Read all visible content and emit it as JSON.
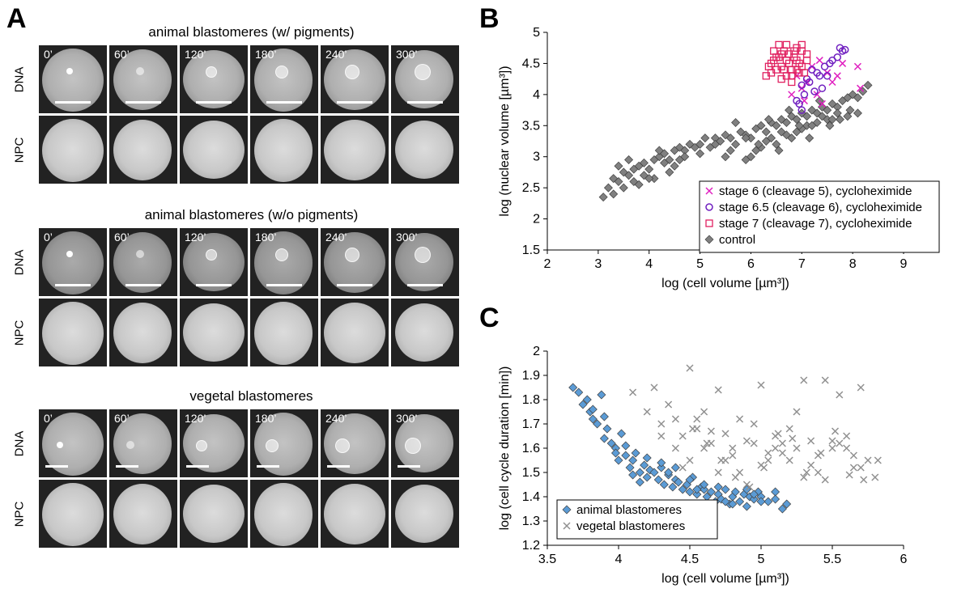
{
  "panel_a": {
    "letter": "A",
    "groups": [
      {
        "title": "animal blastomeres (w/  pigments)",
        "times": [
          "0’",
          "60’",
          "120’",
          "180’",
          "240’",
          "300’"
        ],
        "rows": [
          "DNA",
          "NPC"
        ]
      },
      {
        "title": "animal blastomeres (w/o pigments)",
        "times": [
          "0’",
          "60’",
          "120’",
          "180’",
          "240’",
          "300’"
        ],
        "rows": [
          "DNA",
          "NPC"
        ]
      },
      {
        "title": "vegetal blastomeres",
        "times": [
          "0’",
          "60’",
          "120’",
          "180’",
          "240’",
          "300’"
        ],
        "rows": [
          "DNA",
          "NPC"
        ]
      }
    ]
  },
  "chart_data": [
    {
      "panel": "B",
      "type": "scatter",
      "xlabel": "log (cell volume [µm³])",
      "ylabel": "log (nuclear volume [µm³])",
      "xlim": [
        2,
        9
      ],
      "ylim": [
        1.5,
        5
      ],
      "xticks": [
        "2",
        "3",
        "4",
        "5",
        "6",
        "7",
        "8",
        "9"
      ],
      "yticks": [
        "1.5",
        "2",
        "2.5",
        "3",
        "3.5",
        "4",
        "4.5",
        "5"
      ],
      "legend_position": "bottom-right",
      "series": [
        {
          "name": "stage 6 (cleavage 5), cycloheximide",
          "marker": "x",
          "color": "#e020c0",
          "x": [
            6.9,
            7.0,
            7.1,
            7.2,
            7.3,
            7.4,
            7.5,
            7.6,
            7.7,
            7.8,
            8.1,
            8.15,
            6.8,
            7.05,
            7.35
          ],
          "y": [
            4.3,
            4.1,
            4.2,
            4.45,
            4.0,
            3.85,
            4.35,
            4.2,
            4.3,
            4.5,
            4.45,
            4.1,
            4.0,
            3.9,
            4.55
          ]
        },
        {
          "name": "stage 6.5 (cleavage 6), cycloheximide",
          "marker": "circle",
          "color": "#7020c0",
          "x": [
            6.9,
            7.0,
            7.05,
            7.1,
            7.2,
            7.3,
            7.4,
            7.5,
            7.6,
            7.7,
            7.75,
            7.8,
            7.85,
            6.95,
            7.15,
            7.25,
            7.45,
            7.55,
            7.0,
            7.35
          ],
          "y": [
            3.9,
            3.75,
            4.0,
            4.25,
            4.4,
            4.35,
            4.1,
            4.3,
            4.55,
            4.6,
            4.75,
            4.7,
            4.72,
            3.85,
            4.2,
            4.05,
            4.45,
            4.5,
            4.15,
            4.3
          ]
        },
        {
          "name": "stage 7 (cleavage 7), cycloheximide",
          "marker": "square",
          "color": "#e02060",
          "x": [
            6.3,
            6.4,
            6.45,
            6.5,
            6.55,
            6.6,
            6.65,
            6.7,
            6.75,
            6.8,
            6.85,
            6.9,
            6.95,
            7.0,
            7.05,
            7.1,
            6.5,
            6.6,
            6.7,
            6.8,
            6.9,
            7.0,
            6.4,
            6.55,
            6.75,
            6.85,
            6.95,
            6.65,
            6.45,
            7.1,
            6.35,
            6.6,
            6.8,
            6.9,
            7.0,
            6.7
          ],
          "y": [
            4.3,
            4.5,
            4.7,
            4.6,
            4.8,
            4.45,
            4.7,
            4.55,
            4.65,
            4.4,
            4.6,
            4.75,
            4.5,
            4.7,
            4.35,
            4.55,
            4.4,
            4.25,
            4.8,
            4.3,
            4.55,
            4.45,
            4.35,
            4.6,
            4.5,
            4.7,
            4.35,
            4.4,
            4.55,
            4.65,
            4.45,
            4.65,
            4.2,
            4.4,
            4.8,
            4.3
          ]
        },
        {
          "name": "control",
          "marker": "diamond",
          "color": "#808080",
          "x": [
            3.1,
            3.2,
            3.3,
            3.4,
            3.5,
            3.6,
            3.7,
            3.8,
            3.9,
            4.0,
            4.1,
            4.2,
            4.3,
            4.4,
            4.5,
            4.6,
            4.7,
            4.8,
            4.9,
            5.0,
            5.1,
            5.2,
            5.3,
            5.4,
            5.5,
            5.6,
            5.7,
            5.8,
            5.9,
            6.0,
            6.1,
            6.2,
            6.3,
            6.4,
            6.5,
            6.6,
            6.7,
            6.8,
            6.9,
            7.0,
            7.1,
            7.2,
            7.3,
            7.4,
            7.5,
            7.6,
            7.7,
            7.8,
            7.9,
            8.0,
            8.1,
            8.2,
            8.3,
            3.3,
            3.5,
            3.7,
            3.9,
            4.1,
            4.3,
            4.5,
            4.7,
            5.0,
            5.3,
            5.6,
            5.9,
            6.1,
            6.3,
            6.5,
            6.7,
            6.9,
            7.1,
            7.3,
            7.5,
            7.7,
            7.9,
            6.0,
            6.2,
            6.4,
            6.6,
            6.8,
            7.0,
            7.2,
            7.4,
            7.6,
            3.4,
            3.6,
            3.8,
            4.0,
            4.2,
            4.4,
            4.6,
            5.5,
            5.7,
            5.9,
            6.15,
            6.35,
            6.55,
            6.75,
            6.95,
            7.15,
            7.35,
            7.55,
            7.75,
            7.95,
            8.1
          ],
          "y": [
            2.35,
            2.5,
            2.65,
            2.6,
            2.75,
            2.7,
            2.8,
            2.85,
            2.9,
            2.8,
            2.95,
            3.0,
            3.05,
            2.95,
            3.1,
            3.15,
            3.1,
            3.2,
            3.15,
            3.2,
            3.3,
            3.15,
            3.3,
            3.25,
            3.35,
            3.3,
            3.2,
            3.4,
            3.35,
            3.3,
            3.45,
            3.5,
            3.4,
            3.55,
            3.5,
            3.6,
            3.55,
            3.65,
            3.6,
            3.7,
            3.65,
            3.75,
            3.7,
            3.8,
            3.75,
            3.85,
            3.8,
            3.9,
            3.95,
            4.0,
            3.95,
            4.05,
            4.15,
            2.4,
            2.5,
            2.6,
            2.7,
            2.65,
            2.9,
            2.85,
            3.0,
            3.05,
            3.2,
            3.1,
            3.3,
            3.1,
            3.25,
            3.2,
            3.35,
            3.4,
            3.5,
            3.55,
            3.6,
            3.7,
            3.65,
            3.0,
            3.15,
            3.3,
            3.4,
            3.3,
            3.45,
            3.5,
            3.65,
            3.6,
            2.85,
            2.95,
            2.55,
            2.65,
            3.1,
            2.75,
            2.95,
            3.0,
            3.55,
            2.95,
            3.2,
            3.6,
            3.1,
            3.75,
            3.5,
            3.3,
            3.9,
            3.5,
            3.6,
            3.75,
            3.7
          ]
        }
      ]
    },
    {
      "panel": "C",
      "type": "scatter",
      "xlabel": "log (cell volume [µm³])",
      "ylabel": "log (cell cycle duration [min])",
      "xlim": [
        3.5,
        6
      ],
      "ylim": [
        1.2,
        2
      ],
      "xticks": [
        "3.5",
        "4",
        "4.5",
        "5",
        "5.5",
        "6"
      ],
      "yticks": [
        "1.2",
        "1.3",
        "1.4",
        "1.5",
        "1.6",
        "1.7",
        "1.8",
        "1.9",
        "2"
      ],
      "legend_position": "bottom-left",
      "series": [
        {
          "name": "animal blastomeres",
          "marker": "diamond",
          "color": "#5b9bd5",
          "x": [
            3.68,
            3.72,
            3.75,
            3.78,
            3.8,
            3.82,
            3.85,
            3.88,
            3.9,
            3.92,
            3.95,
            3.98,
            4.0,
            4.02,
            4.05,
            4.08,
            4.1,
            4.12,
            4.15,
            4.18,
            4.2,
            4.22,
            4.25,
            4.28,
            4.3,
            4.32,
            4.35,
            4.38,
            4.4,
            4.42,
            4.45,
            4.48,
            4.5,
            4.52,
            4.55,
            4.58,
            4.6,
            4.62,
            4.65,
            4.68,
            4.7,
            4.72,
            4.75,
            4.78,
            4.8,
            4.82,
            4.85,
            4.88,
            4.9,
            4.92,
            4.95,
            4.98,
            5.0,
            5.05,
            5.1,
            5.15,
            5.18,
            3.82,
            3.9,
            4.05,
            4.1,
            4.2,
            4.3,
            4.4,
            4.5,
            4.6,
            4.7,
            4.8,
            4.9,
            5.0,
            5.1,
            3.98,
            4.15,
            4.35,
            4.55,
            4.75,
            4.95
          ],
          "y": [
            1.85,
            1.83,
            1.78,
            1.8,
            1.75,
            1.72,
            1.7,
            1.82,
            1.73,
            1.68,
            1.62,
            1.6,
            1.55,
            1.66,
            1.57,
            1.52,
            1.55,
            1.58,
            1.5,
            1.53,
            1.48,
            1.51,
            1.5,
            1.47,
            1.52,
            1.45,
            1.49,
            1.44,
            1.47,
            1.46,
            1.43,
            1.45,
            1.42,
            1.48,
            1.41,
            1.44,
            1.43,
            1.4,
            1.42,
            1.38,
            1.41,
            1.39,
            1.43,
            1.37,
            1.4,
            1.42,
            1.38,
            1.41,
            1.36,
            1.4,
            1.39,
            1.42,
            1.4,
            1.38,
            1.42,
            1.35,
            1.37,
            1.76,
            1.64,
            1.61,
            1.49,
            1.56,
            1.54,
            1.52,
            1.47,
            1.45,
            1.44,
            1.37,
            1.43,
            1.38,
            1.39,
            1.58,
            1.46,
            1.5,
            1.43,
            1.38,
            1.41
          ]
        },
        {
          "name": "vegetal blastomeres",
          "marker": "x",
          "color": "#909090",
          "x": [
            4.1,
            4.2,
            4.25,
            4.3,
            4.35,
            4.4,
            4.45,
            4.5,
            4.55,
            4.6,
            4.65,
            4.7,
            4.75,
            4.8,
            4.85,
            4.9,
            4.95,
            5.0,
            5.05,
            5.1,
            5.15,
            5.2,
            5.25,
            5.3,
            5.35,
            5.4,
            5.45,
            5.5,
            5.55,
            5.6,
            5.65,
            5.7,
            5.75,
            5.8,
            4.5,
            4.6,
            4.7,
            4.8,
            4.9,
            5.0,
            5.1,
            5.2,
            5.3,
            5.4,
            5.5,
            5.6,
            5.7,
            4.3,
            4.4,
            4.55,
            4.65,
            4.75,
            4.85,
            4.95,
            5.05,
            5.15,
            5.25,
            5.35,
            5.45,
            5.55,
            5.65,
            4.45,
            4.52,
            4.62,
            4.72,
            4.82,
            4.92,
            5.02,
            5.12,
            5.22,
            5.32,
            5.42,
            5.52,
            5.62,
            5.72,
            5.82
          ],
          "y": [
            1.83,
            1.75,
            1.85,
            1.7,
            1.78,
            1.72,
            1.65,
            1.93,
            1.68,
            1.75,
            1.62,
            1.84,
            1.66,
            1.6,
            1.72,
            1.63,
            1.7,
            1.86,
            1.58,
            1.65,
            1.62,
            1.55,
            1.75,
            1.88,
            1.63,
            1.57,
            1.88,
            1.6,
            1.82,
            1.65,
            1.52,
            1.85,
            1.55,
            1.48,
            1.55,
            1.6,
            1.5,
            1.57,
            1.45,
            1.53,
            1.6,
            1.68,
            1.48,
            1.5,
            1.63,
            1.6,
            1.52,
            1.65,
            1.6,
            1.72,
            1.67,
            1.55,
            1.5,
            1.62,
            1.55,
            1.58,
            1.6,
            1.53,
            1.47,
            1.62,
            1.57,
            1.52,
            1.68,
            1.62,
            1.55,
            1.48,
            1.44,
            1.52,
            1.66,
            1.64,
            1.5,
            1.58,
            1.67,
            1.49,
            1.47,
            1.55
          ]
        }
      ]
    }
  ]
}
